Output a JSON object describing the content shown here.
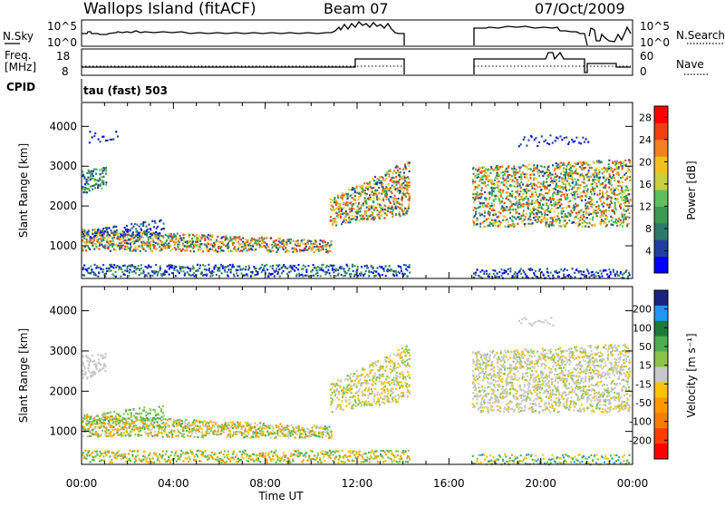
{
  "header": {
    "station": "Wallops Island (fitACF)",
    "beam": "Beam 07",
    "date": "07/Oct/2009"
  },
  "top_panels": {
    "nsky_label": "N.Sky",
    "nsky_ticks": [
      "10^5",
      "10^0"
    ],
    "nsearch_label": "N.Search",
    "nsearch_ticks": [
      "10^5",
      "10^0"
    ],
    "freq_label_1": "Freq.",
    "freq_label_2": "[MHz]",
    "freq_ticks": [
      "18",
      "8"
    ],
    "nave_label": "Nave",
    "nave_ticks": [
      "60",
      "0"
    ],
    "cpid_label": "CPID",
    "cpid_value": "tau (fast) 503"
  },
  "colors": {
    "power_scale": [
      "#0000ff",
      "#1f3fa0",
      "#2a7a6a",
      "#3a9a50",
      "#5cc05c",
      "#c8d040",
      "#f0c020",
      "#f08020",
      "#f04010",
      "#ff0000"
    ],
    "velocity_scale": [
      "#1a237e",
      "#2196f3",
      "#1b7a3a",
      "#4caf50",
      "#8bc34a",
      "#c8c8c8",
      "#ffc107",
      "#ff9800",
      "#f57c00",
      "#ff3d00",
      "#ff0000"
    ]
  },
  "chart_data": [
    {
      "type": "heatmap",
      "title": "Power",
      "ylabel": "Slant Range [km]",
      "xlabel": "",
      "ylim": [
        180,
        4600
      ],
      "xlim": [
        0,
        24
      ],
      "x_ticks": [
        "00:00",
        "04:00",
        "08:00",
        "12:00",
        "16:00",
        "20:00",
        "00:00"
      ],
      "y_ticks": [
        "1000",
        "2000",
        "3000",
        "4000"
      ],
      "colorbar": {
        "label": "Power [dB]",
        "ticks": [
          "4",
          "8",
          "12",
          "16",
          "20",
          "24",
          "28"
        ],
        "range": [
          0,
          30
        ]
      }
    },
    {
      "type": "heatmap",
      "title": "Velocity",
      "ylabel": "Slant Range [km]",
      "xlabel": "Time UT",
      "ylim": [
        180,
        4600
      ],
      "xlim": [
        0,
        24
      ],
      "x_ticks": [
        "00:00",
        "04:00",
        "08:00",
        "12:00",
        "16:00",
        "20:00",
        "00:00"
      ],
      "y_ticks": [
        "1000",
        "2000",
        "3000",
        "4000"
      ],
      "colorbar": {
        "label": "Velocity [m s⁻¹]",
        "ticks": [
          "200",
          "100",
          "50",
          "15",
          "-15",
          "-50",
          "-100",
          "-200"
        ],
        "range": [
          -250,
          250
        ]
      }
    }
  ]
}
